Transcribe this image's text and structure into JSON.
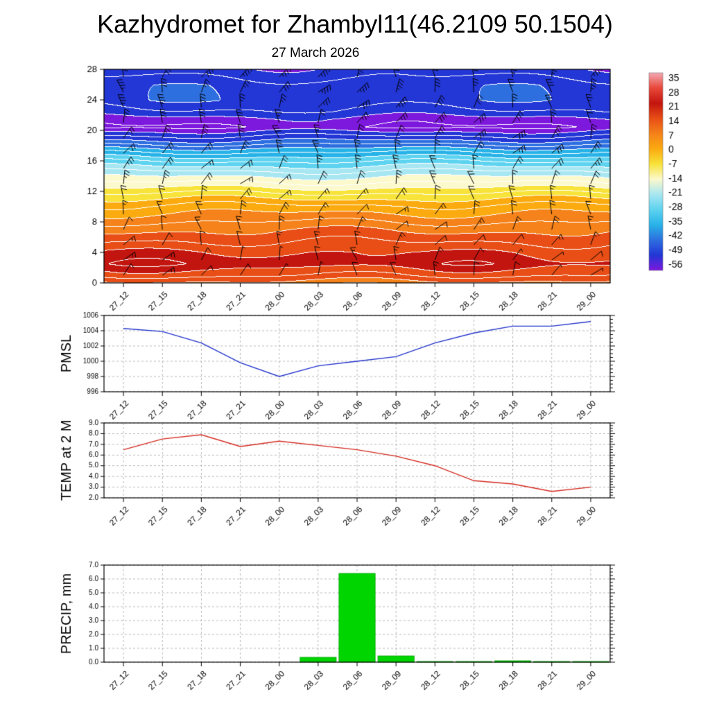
{
  "header": {
    "title": "Kazhydromet for Zhambyl11(46.2109 50.1504)",
    "subtitle": "27 March 2026"
  },
  "chart_data": [
    {
      "type": "heatmap",
      "name": "temperature-height-cross-section",
      "title": "27 March 2026",
      "x_tick_labels": [
        "27_12",
        "27_15",
        "27_18",
        "27_21",
        "28_00",
        "28_03",
        "28_06",
        "28_09",
        "28_12",
        "28_15",
        "28_18",
        "28_21",
        "29_00"
      ],
      "y_tick_labels": [
        "0",
        "4",
        "8",
        "12",
        "16",
        "20",
        "24",
        "28"
      ],
      "ylim": [
        0,
        28
      ],
      "overlays": [
        "wind-barbs",
        "white-contour-lines"
      ],
      "colorbar_tick_labels": [
        "35",
        "28",
        "21",
        "14",
        "7",
        "0",
        "-7",
        "-14",
        "-21",
        "-28",
        "-35",
        "-42",
        "-49",
        "-56"
      ],
      "colorbar_colors": [
        "#f4aab4",
        "#e8483a",
        "#c3150f",
        "#e84e16",
        "#f5821a",
        "#fbab10",
        "#f8e33a",
        "#fcf9cd",
        "#a8e7f2",
        "#5ed3f0",
        "#28b3e8",
        "#2e6fe0",
        "#2336d6",
        "#7d18dd"
      ],
      "base_profile": {
        "heights": [
          0,
          1,
          2.5,
          4,
          5.5,
          7,
          8.5,
          10,
          11.5,
          13,
          14.5,
          16,
          17.5,
          18.5,
          19.5,
          20.5,
          21.5,
          22.5,
          24,
          26,
          27,
          28
        ],
        "temps": [
          9,
          14,
          19,
          17,
          13.5,
          10,
          5.5,
          1,
          -5.5,
          -13,
          -20,
          -28,
          -37,
          -44,
          -50,
          -56,
          -54,
          -50,
          -46.5,
          -47,
          -49,
          -51
        ]
      }
    },
    {
      "type": "line",
      "name": "pmsl",
      "ylabel": "PMSL",
      "line_color": "#2233cc",
      "ylim": [
        996,
        1006
      ],
      "y_tick_labels": [
        "996",
        "998",
        "1000",
        "1002",
        "1004",
        "1006"
      ],
      "x_tick_labels": [
        "27_12",
        "27_15",
        "27_18",
        "27_21",
        "28_00",
        "28_03",
        "28_06",
        "28_09",
        "28_12",
        "28_15",
        "28_18",
        "28_21",
        "29_00"
      ],
      "values": [
        1004.3,
        1003.9,
        1002.4,
        999.8,
        998.0,
        999.4,
        1000.0,
        1000.6,
        1002.4,
        1003.7,
        1004.6,
        1004.6,
        1005.2
      ]
    },
    {
      "type": "line",
      "name": "temp-2m",
      "ylabel": "TEMP at 2 M",
      "line_color": "#d42a20",
      "ylim": [
        2,
        9
      ],
      "y_tick_labels": [
        "2.0",
        "3.0",
        "4.0",
        "5.0",
        "6.0",
        "7.0",
        "8.0",
        "9.0"
      ],
      "x_tick_labels": [
        "27_12",
        "27_15",
        "27_18",
        "27_21",
        "28_00",
        "28_03",
        "28_06",
        "28_09",
        "28_12",
        "28_15",
        "28_18",
        "28_21",
        "29_00"
      ],
      "values": [
        6.5,
        7.5,
        7.9,
        6.8,
        7.3,
        6.9,
        6.5,
        5.9,
        5.0,
        3.6,
        3.3,
        2.6,
        3.0
      ]
    },
    {
      "type": "bar",
      "name": "precip",
      "ylabel": "PRECIP, mm",
      "bar_color": "#00d500",
      "ylim": [
        0,
        7
      ],
      "y_tick_labels": [
        "0.0",
        "1.0",
        "2.0",
        "3.0",
        "4.0",
        "5.0",
        "6.0",
        "7.0"
      ],
      "x_tick_labels": [
        "27_12",
        "27_15",
        "27_18",
        "27_21",
        "28_00",
        "28_03",
        "28_06",
        "28_09",
        "28_12",
        "28_15",
        "28_18",
        "28_21",
        "29_00"
      ],
      "values": [
        0,
        0,
        0,
        0,
        0,
        0.35,
        6.4,
        0.45,
        0.05,
        0.05,
        0.1,
        0.05,
        0.05
      ]
    }
  ]
}
